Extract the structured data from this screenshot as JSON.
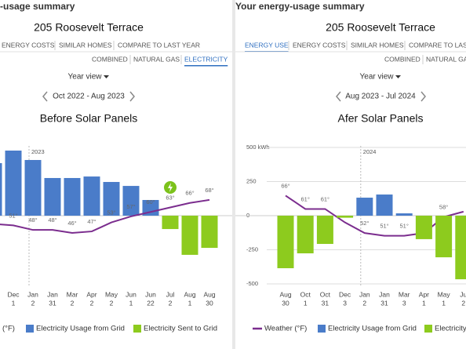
{
  "chart_data": [
    {
      "type": "bar",
      "header": "-usage summary",
      "address": "205 Roosevelt Terrace",
      "tabs": [
        "ENERGY COSTS",
        "SIMILAR HOMES",
        "COMPARE TO LAST YEAR"
      ],
      "subtabs": [
        "COMBINED",
        "NATURAL GAS",
        "ELECTRICITY"
      ],
      "view": "Year view",
      "range": "Oct 2022 - Aug 2023",
      "title": "Before Solar Panels",
      "year_marker": "2023",
      "categories": [
        null,
        [
          "Dec",
          "1"
        ],
        [
          "Jan",
          "2"
        ],
        [
          "Jan",
          "31"
        ],
        [
          "Mar",
          "2"
        ],
        [
          "Apr",
          "2"
        ],
        [
          "May",
          "2"
        ],
        [
          "Jun",
          "1"
        ],
        [
          "Jun",
          "22"
        ],
        [
          "Jul",
          "2"
        ],
        [
          "Aug",
          "1"
        ],
        [
          "Aug",
          "30"
        ]
      ],
      "ylim": [
        -500,
        500
      ],
      "y2lim": [
        12,
        103
      ],
      "series": [
        {
          "name": "Electricity Usage from Grid",
          "color": "#4a7cc9",
          "values": [
            385,
            477,
            408,
            276,
            276,
            287,
            247,
            218,
            115,
            null,
            null,
            null
          ]
        },
        {
          "name": "Electricity Sent to Grid",
          "color": "#8dcb1e",
          "values": [
            null,
            null,
            null,
            null,
            null,
            null,
            null,
            null,
            null,
            -98,
            -287,
            -236
          ]
        },
        {
          "name": "(°F)",
          "color": "#7b2d8e",
          "axis": "y2",
          "values": [
            52,
            51,
            48,
            48,
            46,
            47,
            53,
            57,
            60,
            63,
            66,
            68
          ],
          "value_labels": [
            null,
            "51°",
            "48°",
            "48°",
            "46°",
            "47°",
            "53°",
            "57°",
            "60°",
            "63°",
            "66°",
            "68°"
          ]
        }
      ]
    },
    {
      "type": "bar",
      "header": "Your energy-usage summary",
      "address": "205 Roosevelt Terrace",
      "tabs": [
        "ENERGY USE",
        "ENERGY COSTS",
        "SIMILAR HOMES",
        "COMPARE TO LAST"
      ],
      "subtabs": [
        "COMBINED",
        "NATURAL GA"
      ],
      "view": "Year view",
      "range": "Aug 2023 - Jul 2024",
      "title": "Afer Solar Panels",
      "year_marker": "2024",
      "categories": [
        [
          "Aug",
          "30"
        ],
        [
          "Oct",
          "1"
        ],
        [
          "Oct",
          "31"
        ],
        [
          "Dec",
          "3"
        ],
        [
          "Jan",
          "2"
        ],
        [
          "Jan",
          "31"
        ],
        [
          "Mar",
          "3"
        ],
        [
          "Apr",
          "1"
        ],
        [
          "May",
          "1"
        ],
        [
          "Ju",
          "2"
        ]
      ],
      "ylim": [
        -500,
        500
      ],
      "yticks": [
        {
          "value": 500,
          "label": "500 kWh"
        },
        250,
        0,
        -250,
        -500
      ],
      "grid": true,
      "y2lim": [
        33,
        84
      ],
      "series": [
        {
          "name": "Weather (°F)",
          "color": "#7b2d8e",
          "axis": "y2",
          "values": [
            66,
            61,
            61,
            56,
            52,
            51,
            51,
            52,
            58,
            60
          ],
          "value_labels": [
            "66°",
            "61°",
            "61°",
            null,
            "52°",
            "51°",
            "51°",
            "52°",
            "58°",
            null
          ]
        },
        {
          "name": "Electricity Usage from Grid",
          "color": "#4a7cc9",
          "values": [
            null,
            null,
            null,
            null,
            132,
            155,
            17,
            null,
            null,
            null
          ]
        },
        {
          "name": "Electricity",
          "color": "#8dcb1e",
          "values": [
            -385,
            -276,
            -207,
            -15,
            null,
            null,
            null,
            -172,
            -305,
            -466
          ]
        }
      ]
    }
  ]
}
